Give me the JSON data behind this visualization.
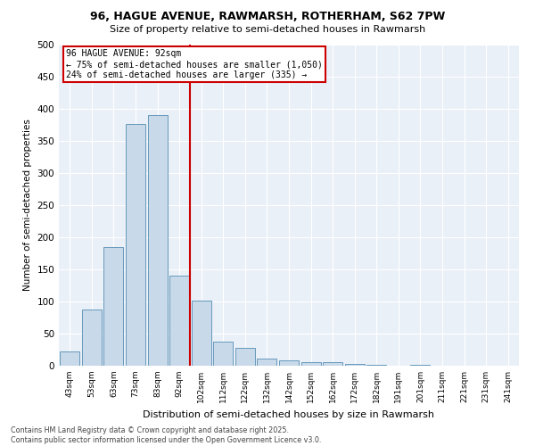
{
  "title_line1": "96, HAGUE AVENUE, RAWMARSH, ROTHERHAM, S62 7PW",
  "title_line2": "Size of property relative to semi-detached houses in Rawmarsh",
  "xlabel": "Distribution of semi-detached houses by size in Rawmarsh",
  "ylabel": "Number of semi-detached properties",
  "bar_color": "#c8d9ea",
  "bar_edge_color": "#6699bb",
  "background_color": "#eaf0f8",
  "categories": [
    "43sqm",
    "53sqm",
    "63sqm",
    "73sqm",
    "83sqm",
    "92sqm",
    "102sqm",
    "112sqm",
    "122sqm",
    "132sqm",
    "142sqm",
    "152sqm",
    "162sqm",
    "172sqm",
    "182sqm",
    "191sqm",
    "201sqm",
    "211sqm",
    "221sqm",
    "231sqm",
    "241sqm"
  ],
  "values": [
    22,
    88,
    185,
    377,
    390,
    140,
    101,
    37,
    28,
    11,
    9,
    6,
    5,
    3,
    1,
    0,
    1,
    0,
    0,
    0,
    0
  ],
  "property_label": "96 HAGUE AVENUE: 92sqm",
  "annotation_line1": "← 75% of semi-detached houses are smaller (1,050)",
  "annotation_line2": "24% of semi-detached houses are larger (335) →",
  "vline_color": "#cc0000",
  "annotation_box_edge": "#cc0000",
  "ylim": [
    0,
    500
  ],
  "yticks": [
    0,
    50,
    100,
    150,
    200,
    250,
    300,
    350,
    400,
    450,
    500
  ],
  "footer_line1": "Contains HM Land Registry data © Crown copyright and database right 2025.",
  "footer_line2": "Contains public sector information licensed under the Open Government Licence v3.0.",
  "vline_bar_index": 5
}
